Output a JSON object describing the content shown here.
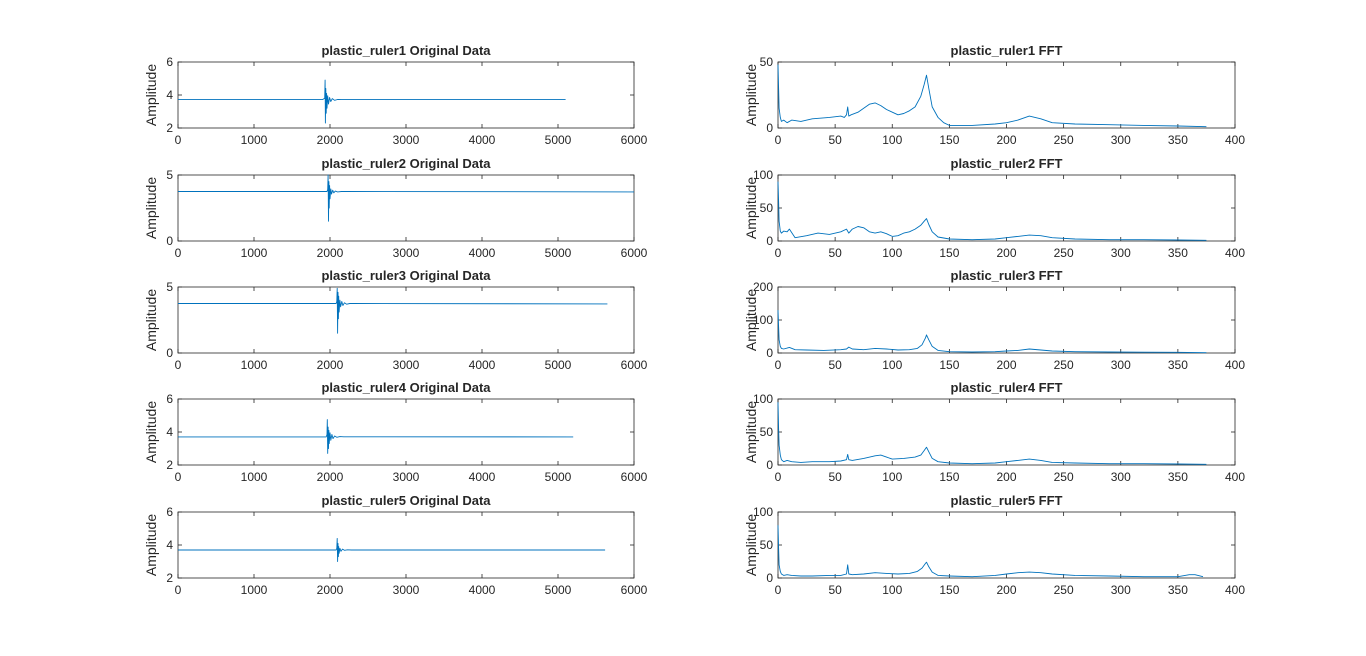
{
  "chart_data": [
    {
      "type": "line",
      "title": "plastic_ruler1 Original Data",
      "xlabel": "",
      "ylabel": "Amplitude",
      "xlim": [
        0,
        6000
      ],
      "ylim": [
        2,
        6
      ],
      "xticks": [
        "0",
        "1000",
        "2000",
        "3000",
        "4000",
        "5000",
        "6000"
      ],
      "yticks": [
        "2",
        "4",
        "6"
      ],
      "color": "#0072BD",
      "series": [
        {
          "x": [
            0,
            1900,
            1930,
            1935,
            1940,
            1945,
            1950,
            1955,
            1960,
            1970,
            1980,
            1995,
            2010,
            2030,
            2060,
            2100,
            2150,
            5100
          ],
          "y": [
            3.72,
            3.72,
            3.8,
            4.9,
            2.3,
            4.4,
            2.9,
            4.1,
            3.2,
            3.95,
            3.45,
            3.85,
            3.6,
            3.78,
            3.68,
            3.73,
            3.72,
            3.72
          ]
        }
      ]
    },
    {
      "type": "line",
      "title": "plastic_ruler1 FFT",
      "xlabel": "",
      "ylabel": "Amplitude",
      "xlim": [
        0,
        400
      ],
      "ylim": [
        0,
        50
      ],
      "xticks": [
        "0",
        "50",
        "100",
        "150",
        "200",
        "250",
        "300",
        "350",
        "400"
      ],
      "yticks": [
        "0",
        "50"
      ],
      "color": "#0072BD",
      "series": [
        {
          "x": [
            0,
            0.5,
            1,
            2,
            3,
            5,
            8,
            12,
            20,
            30,
            45,
            55,
            58,
            60,
            61,
            62,
            64,
            70,
            75,
            80,
            85,
            90,
            95,
            100,
            105,
            110,
            115,
            120,
            125,
            128,
            130,
            132,
            135,
            140,
            145,
            150,
            170,
            190,
            200,
            210,
            220,
            230,
            240,
            260,
            290,
            320,
            350,
            375
          ],
          "y": [
            48,
            30,
            15,
            8,
            5,
            6,
            4,
            6,
            5,
            7,
            8,
            9,
            8,
            10,
            16,
            9,
            10,
            12,
            15,
            18,
            19,
            17,
            14,
            12,
            10,
            11,
            13,
            16,
            24,
            33,
            40,
            30,
            16,
            8,
            4,
            2,
            2,
            3,
            4,
            6,
            9,
            7,
            4,
            3,
            2.5,
            2,
            1.5,
            1
          ]
        }
      ]
    },
    {
      "type": "line",
      "title": "plastic_ruler2 Original Data",
      "xlabel": "",
      "ylabel": "Amplitude",
      "xlim": [
        0,
        6000
      ],
      "ylim": [
        0,
        5
      ],
      "xticks": [
        "0",
        "1000",
        "2000",
        "3000",
        "4000",
        "5000",
        "6000"
      ],
      "yticks": [
        "0",
        "5"
      ],
      "color": "#0072BD",
      "series": [
        {
          "x": [
            0,
            1960,
            1970,
            1975,
            1980,
            1985,
            1990,
            1995,
            2000,
            2010,
            2020,
            2035,
            2050,
            2070,
            2100,
            2150,
            2200,
            6000
          ],
          "y": [
            3.75,
            3.75,
            3.9,
            5.0,
            1.5,
            4.5,
            2.5,
            4.2,
            3.2,
            3.95,
            3.55,
            3.85,
            3.65,
            3.78,
            3.72,
            3.75,
            3.75,
            3.72
          ]
        }
      ]
    },
    {
      "type": "line",
      "title": "plastic_ruler2 FFT",
      "xlabel": "",
      "ylabel": "Amplitude",
      "xlim": [
        0,
        400
      ],
      "ylim": [
        0,
        100
      ],
      "xticks": [
        "0",
        "50",
        "100",
        "150",
        "200",
        "250",
        "300",
        "350",
        "400"
      ],
      "yticks": [
        "0",
        "50",
        "100"
      ],
      "color": "#0072BD",
      "series": [
        {
          "x": [
            0,
            0.5,
            1,
            2,
            3,
            5,
            8,
            10,
            15,
            25,
            35,
            45,
            55,
            60,
            62,
            65,
            70,
            75,
            80,
            85,
            90,
            95,
            100,
            105,
            110,
            115,
            120,
            125,
            128,
            130,
            132,
            135,
            140,
            150,
            170,
            190,
            200,
            210,
            220,
            230,
            240,
            260,
            290,
            320,
            350,
            375
          ],
          "y": [
            90,
            60,
            30,
            15,
            12,
            15,
            14,
            18,
            5,
            8,
            12,
            10,
            14,
            18,
            12,
            18,
            22,
            20,
            14,
            12,
            14,
            11,
            7,
            8,
            12,
            14,
            18,
            24,
            30,
            34,
            25,
            14,
            6,
            3,
            2,
            3,
            5,
            7,
            9,
            8,
            5,
            3,
            2,
            2,
            1.5,
            1
          ]
        }
      ]
    },
    {
      "type": "line",
      "title": "plastic_ruler3 Original Data",
      "xlabel": "",
      "ylabel": "Amplitude",
      "xlim": [
        0,
        6000
      ],
      "ylim": [
        0,
        5
      ],
      "xticks": [
        "0",
        "1000",
        "2000",
        "3000",
        "4000",
        "5000",
        "6000"
      ],
      "yticks": [
        "0",
        "5"
      ],
      "color": "#0072BD",
      "series": [
        {
          "x": [
            0,
            2080,
            2090,
            2095,
            2100,
            2105,
            2110,
            2115,
            2120,
            2130,
            2140,
            2155,
            2170,
            2190,
            2220,
            2260,
            2300,
            5650
          ],
          "y": [
            3.75,
            3.75,
            3.9,
            4.9,
            1.5,
            4.6,
            2.6,
            4.3,
            3.1,
            4.0,
            3.5,
            3.9,
            3.6,
            3.8,
            3.7,
            3.75,
            3.75,
            3.72
          ]
        }
      ]
    },
    {
      "type": "line",
      "title": "plastic_ruler3 FFT",
      "xlabel": "",
      "ylabel": "Amplitude",
      "xlim": [
        0,
        400
      ],
      "ylim": [
        0,
        200
      ],
      "xticks": [
        "0",
        "50",
        "100",
        "150",
        "200",
        "250",
        "300",
        "350",
        "400"
      ],
      "yticks": [
        "0",
        "100",
        "200"
      ],
      "color": "#0072BD",
      "series": [
        {
          "x": [
            0,
            0.5,
            1,
            2,
            3,
            5,
            8,
            10,
            15,
            25,
            40,
            55,
            60,
            62,
            65,
            75,
            85,
            95,
            105,
            115,
            122,
            126,
            129,
            130,
            132,
            135,
            140,
            150,
            170,
            190,
            200,
            210,
            220,
            230,
            240,
            260,
            290,
            320,
            350,
            375
          ],
          "y": [
            130,
            80,
            40,
            20,
            14,
            12,
            15,
            17,
            10,
            9,
            8,
            10,
            12,
            18,
            12,
            10,
            14,
            12,
            9,
            10,
            14,
            25,
            45,
            55,
            40,
            20,
            8,
            4,
            3,
            4,
            6,
            8,
            12,
            9,
            6,
            4,
            3,
            2.5,
            2,
            1
          ]
        }
      ]
    },
    {
      "type": "line",
      "title": "plastic_ruler4 Original Data",
      "xlabel": "",
      "ylabel": "Amplitude",
      "xlim": [
        0,
        6000
      ],
      "ylim": [
        2,
        6
      ],
      "xticks": [
        "0",
        "1000",
        "2000",
        "3000",
        "4000",
        "5000",
        "6000"
      ],
      "yticks": [
        "2",
        "4",
        "6"
      ],
      "color": "#0072BD",
      "series": [
        {
          "x": [
            0,
            1950,
            1960,
            1965,
            1970,
            1975,
            1980,
            1985,
            1990,
            2000,
            2010,
            2025,
            2040,
            2060,
            2090,
            2130,
            2180,
            5200
          ],
          "y": [
            3.7,
            3.7,
            3.85,
            4.75,
            2.7,
            4.3,
            3.0,
            4.1,
            3.3,
            3.95,
            3.5,
            3.85,
            3.6,
            3.76,
            3.68,
            3.72,
            3.71,
            3.7
          ]
        }
      ]
    },
    {
      "type": "line",
      "title": "plastic_ruler4 FFT",
      "xlabel": "",
      "ylabel": "Amplitude",
      "xlim": [
        0,
        400
      ],
      "ylim": [
        0,
        100
      ],
      "xticks": [
        "0",
        "50",
        "100",
        "150",
        "200",
        "250",
        "300",
        "350",
        "400"
      ],
      "yticks": [
        "0",
        "50",
        "100"
      ],
      "color": "#0072BD",
      "series": [
        {
          "x": [
            0,
            0.5,
            1,
            2,
            3,
            5,
            8,
            12,
            20,
            30,
            45,
            55,
            60,
            61,
            62,
            65,
            75,
            85,
            90,
            95,
            100,
            110,
            120,
            125,
            128,
            130,
            132,
            135,
            140,
            150,
            170,
            190,
            200,
            210,
            220,
            230,
            240,
            260,
            290,
            320,
            350,
            375
          ],
          "y": [
            95,
            55,
            30,
            15,
            8,
            5,
            7,
            5,
            4,
            5,
            5,
            6,
            8,
            16,
            8,
            7,
            10,
            14,
            15,
            12,
            9,
            10,
            12,
            15,
            22,
            27,
            20,
            10,
            5,
            3,
            2,
            3,
            5,
            7,
            9,
            7,
            4,
            3,
            2,
            2,
            1.5,
            1
          ]
        }
      ]
    },
    {
      "type": "line",
      "title": "plastic_ruler5 Original Data",
      "xlabel": "",
      "ylabel": "Amplitude",
      "xlim": [
        0,
        6000
      ],
      "ylim": [
        2,
        6
      ],
      "xticks": [
        "0",
        "1000",
        "2000",
        "3000",
        "4000",
        "5000",
        "6000"
      ],
      "yticks": [
        "2",
        "4",
        "6"
      ],
      "color": "#0072BD",
      "series": [
        {
          "x": [
            0,
            2080,
            2090,
            2095,
            2100,
            2105,
            2110,
            2115,
            2120,
            2130,
            2145,
            2165,
            2190,
            2230,
            2280,
            5620
          ],
          "y": [
            3.7,
            3.7,
            3.8,
            4.4,
            3.0,
            4.1,
            3.3,
            3.9,
            3.5,
            3.8,
            3.62,
            3.75,
            3.68,
            3.71,
            3.7,
            3.7
          ]
        }
      ]
    },
    {
      "type": "line",
      "title": "plastic_ruler5 FFT",
      "xlabel": "",
      "ylabel": "Amplitude",
      "xlim": [
        0,
        400
      ],
      "ylim": [
        0,
        100
      ],
      "xticks": [
        "0",
        "50",
        "100",
        "150",
        "200",
        "250",
        "300",
        "350",
        "400"
      ],
      "yticks": [
        "0",
        "50",
        "100"
      ],
      "color": "#0072BD",
      "series": [
        {
          "x": [
            0,
            0.5,
            1,
            2,
            3,
            5,
            8,
            12,
            20,
            30,
            45,
            55,
            60,
            61,
            62,
            65,
            75,
            85,
            95,
            105,
            115,
            122,
            126,
            129,
            130,
            132,
            135,
            140,
            150,
            170,
            190,
            200,
            210,
            220,
            230,
            240,
            260,
            290,
            320,
            350,
            360,
            365,
            372
          ],
          "y": [
            80,
            45,
            20,
            10,
            6,
            4,
            5,
            4,
            3,
            3,
            4,
            4,
            6,
            20,
            6,
            5,
            6,
            8,
            7,
            6,
            7,
            10,
            15,
            22,
            24,
            17,
            9,
            4,
            3,
            2,
            4,
            6,
            8,
            9,
            8,
            6,
            4,
            3,
            2,
            2,
            5,
            5,
            2
          ]
        }
      ]
    }
  ]
}
